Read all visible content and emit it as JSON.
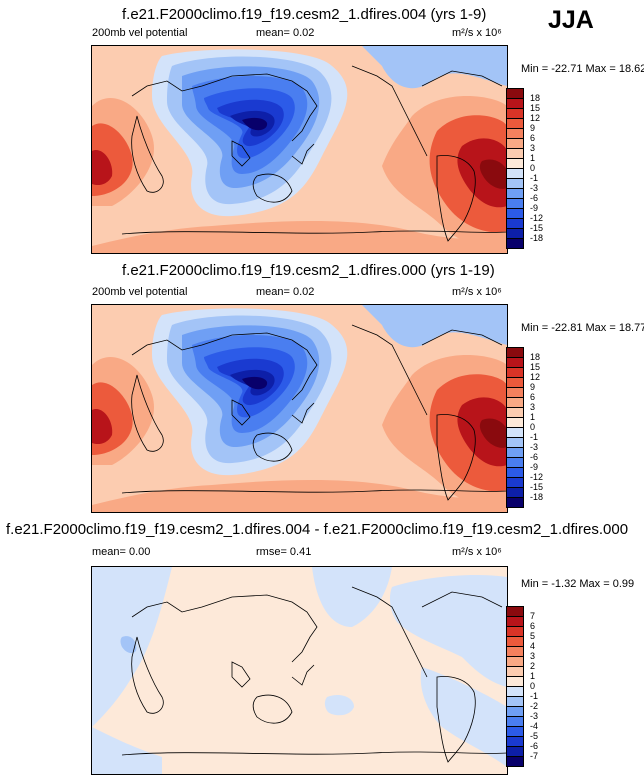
{
  "season": "JJA",
  "panels": [
    {
      "title": "f.e21.F2000climo.f19_f19.cesm2_1.dfires.004 (yrs 1-9)",
      "left_label": "200mb vel potential",
      "mid_label": "mean=   0.02",
      "units": "m²/s x 10⁶",
      "minmax": "Min = -22.71 Max =  18.62",
      "colorbar_labels": [
        "18",
        "15",
        "12",
        "9",
        "6",
        "3",
        "1",
        "0",
        "-1",
        "-3",
        "-6",
        "-9",
        "-12",
        "-15",
        "-18"
      ]
    },
    {
      "title": "f.e21.F2000climo.f19_f19.cesm2_1.dfires.000 (yrs 1-19)",
      "left_label": "200mb vel potential",
      "mid_label": "mean=   0.02",
      "units": "m²/s x 10⁶",
      "minmax": "Min = -22.81 Max =  18.77",
      "colorbar_labels": [
        "18",
        "15",
        "12",
        "9",
        "6",
        "3",
        "1",
        "0",
        "-1",
        "-3",
        "-6",
        "-9",
        "-12",
        "-15",
        "-18"
      ]
    },
    {
      "title": "f.e21.F2000climo.f19_f19.cesm2_1.dfires.004 - f.e21.F2000climo.f19_f19.cesm2_1.dfires.000",
      "left_label": "mean=   0.00",
      "mid_label": "rmse=   0.41",
      "units": "m²/s x 10⁶",
      "minmax": "Min =  -1.32 Max =   0.99",
      "colorbar_labels": [
        "7",
        "6",
        "5",
        "4",
        "3",
        "2",
        "1",
        "0",
        "-1",
        "-2",
        "-3",
        "-4",
        "-5",
        "-6",
        "-7"
      ]
    }
  ],
  "chart_data": [
    {
      "type": "heatmap",
      "title": "f.e21.F2000climo.f19_f19.cesm2_1.dfires.004 (yrs 1-9)",
      "variable": "200mb vel potential",
      "units": "m²/s x 10⁶",
      "mean": 0.02,
      "min": -22.71,
      "max": 18.62,
      "contour_levels": [
        -18,
        -15,
        -12,
        -9,
        -6,
        -3,
        -1,
        0,
        1,
        3,
        6,
        9,
        12,
        15,
        18
      ],
      "colors": [
        "#08006b",
        "#0d1fa8",
        "#1a3ad0",
        "#2c5be8",
        "#4a7ef0",
        "#6f9ff4",
        "#a3c4f7",
        "#d3e3fa",
        "#fde9d9",
        "#fcccb0",
        "#f9a985",
        "#f4815e",
        "#ec5a3c",
        "#d93427",
        "#b8141a",
        "#8a0a0e"
      ]
    },
    {
      "type": "heatmap",
      "title": "f.e21.F2000climo.f19_f19.cesm2_1.dfires.000 (yrs 1-19)",
      "variable": "200mb vel potential",
      "units": "m²/s x 10⁶",
      "mean": 0.02,
      "min": -22.81,
      "max": 18.77,
      "contour_levels": [
        -18,
        -15,
        -12,
        -9,
        -6,
        -3,
        -1,
        0,
        1,
        3,
        6,
        9,
        12,
        15,
        18
      ],
      "colors": [
        "#08006b",
        "#0d1fa8",
        "#1a3ad0",
        "#2c5be8",
        "#4a7ef0",
        "#6f9ff4",
        "#a3c4f7",
        "#d3e3fa",
        "#fde9d9",
        "#fcccb0",
        "#f9a985",
        "#f4815e",
        "#ec5a3c",
        "#d93427",
        "#b8141a",
        "#8a0a0e"
      ]
    },
    {
      "type": "heatmap",
      "title": "f.e21.F2000climo.f19_f19.cesm2_1.dfires.004 - f.e21.F2000climo.f19_f19.cesm2_1.dfires.000",
      "units": "m²/s x 10⁶",
      "mean": 0.0,
      "rmse": 0.41,
      "min": -1.32,
      "max": 0.99,
      "contour_levels": [
        -7,
        -6,
        -5,
        -4,
        -3,
        -2,
        -1,
        0,
        1,
        2,
        3,
        4,
        5,
        6,
        7
      ],
      "colors": [
        "#08006b",
        "#0d1fa8",
        "#1a3ad0",
        "#2c5be8",
        "#4a7ef0",
        "#6f9ff4",
        "#a3c4f7",
        "#d3e3fa",
        "#fde9d9",
        "#fcccb0",
        "#f9a985",
        "#f4815e",
        "#ec5a3c",
        "#d93427",
        "#b8141a",
        "#8a0a0e"
      ]
    }
  ]
}
